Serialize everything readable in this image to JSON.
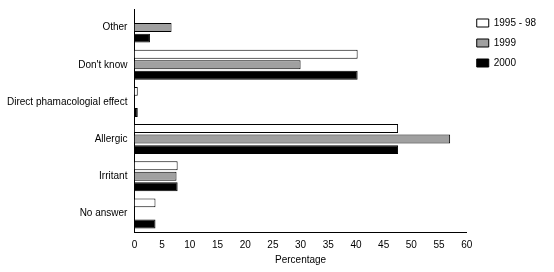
{
  "chart_data": {
    "type": "bar",
    "orientation": "horizontal",
    "categories": [
      "Other",
      "Don't know",
      "Direct phamacologial effect",
      "Allergic",
      "Irritant",
      "No answer"
    ],
    "series": [
      {
        "name": "1995 - 98",
        "color": "#ffffff",
        "values": [
          0,
          40.3,
          0.6,
          47.6,
          7.8,
          3.8
        ]
      },
      {
        "name": "1999",
        "color": "#a0a0a0",
        "values": [
          6.7,
          30,
          0,
          57,
          7.6,
          0
        ]
      },
      {
        "name": "2000",
        "color": "#000000",
        "values": [
          2.8,
          40.3,
          0.6,
          47.6,
          7.8,
          3.8
        ]
      }
    ],
    "x_label": "Percentage",
    "xlim": [
      0,
      60
    ],
    "xticks": [
      0,
      5,
      10,
      15,
      20,
      25,
      30,
      35,
      40,
      45,
      50,
      55,
      60
    ],
    "grid": false,
    "legend": "upper right"
  }
}
